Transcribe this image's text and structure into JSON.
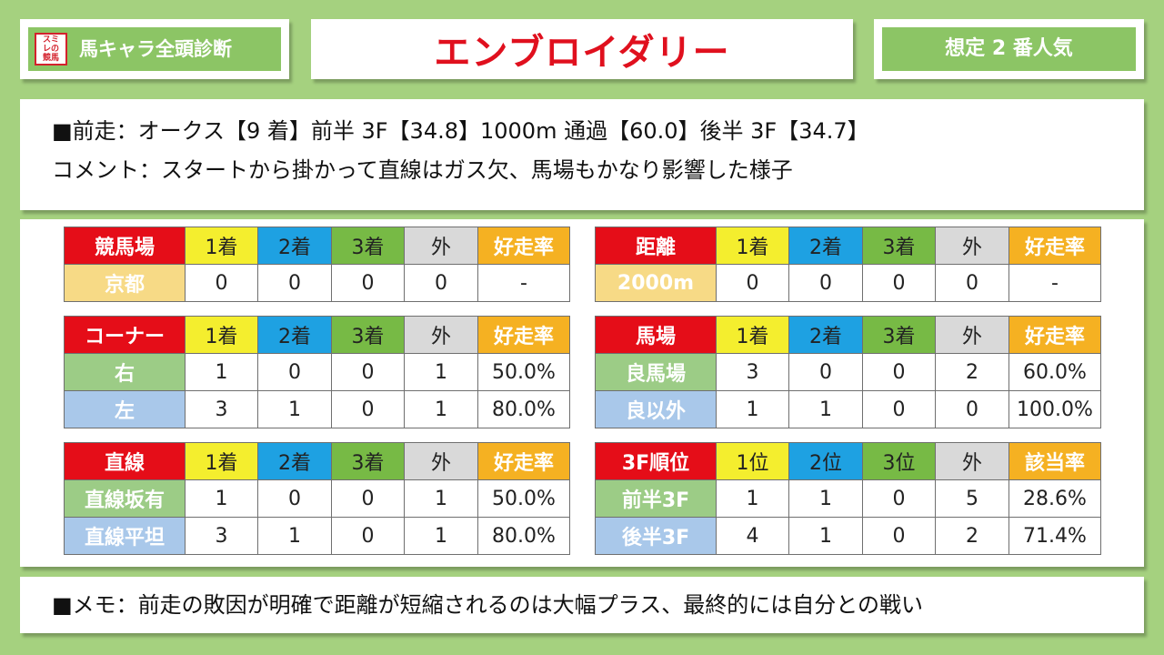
{
  "header": {
    "logo_lines": [
      "スミ",
      "レの",
      "競馬"
    ],
    "brand": "馬キャラ全頭診断",
    "horse_name": "エンブロイダリー",
    "popularity": "想定 2 番人気"
  },
  "info": {
    "last_race": "■前走：オークス【9 着】前半 3F【34.8】1000m 通過【60.0】後半 3F【34.7】",
    "comment": "コメント：スタートから掛かって直線はガス欠、馬場もかなり影響した様子"
  },
  "tables": {
    "racecourse": {
      "header": [
        "競馬場",
        "1着",
        "2着",
        "3着",
        "外",
        "好走率"
      ],
      "rows": [
        [
          "京都",
          "0",
          "0",
          "0",
          "0",
          "-"
        ]
      ]
    },
    "distance": {
      "header": [
        "距離",
        "1着",
        "2着",
        "3着",
        "外",
        "好走率"
      ],
      "rows": [
        [
          "2000m",
          "0",
          "0",
          "0",
          "0",
          "-"
        ]
      ]
    },
    "corner": {
      "header": [
        "コーナー",
        "1着",
        "2着",
        "3着",
        "外",
        "好走率"
      ],
      "rows": [
        [
          "右",
          "1",
          "0",
          "0",
          "1",
          "50.0%"
        ],
        [
          "左",
          "3",
          "1",
          "0",
          "1",
          "80.0%"
        ]
      ]
    },
    "going": {
      "header": [
        "馬場",
        "1着",
        "2着",
        "3着",
        "外",
        "好走率"
      ],
      "rows": [
        [
          "良馬場",
          "3",
          "0",
          "0",
          "2",
          "60.0%"
        ],
        [
          "良以外",
          "1",
          "1",
          "0",
          "0",
          "100.0%"
        ]
      ]
    },
    "straight": {
      "header": [
        "直線",
        "1着",
        "2着",
        "3着",
        "外",
        "好走率"
      ],
      "rows": [
        [
          "直線坂有",
          "1",
          "0",
          "0",
          "1",
          "50.0%"
        ],
        [
          "直線平坦",
          "3",
          "1",
          "0",
          "1",
          "80.0%"
        ]
      ]
    },
    "f3rank": {
      "header": [
        "3F順位",
        "1位",
        "2位",
        "3位",
        "外",
        "該当率"
      ],
      "rows": [
        [
          "前半3F",
          "1",
          "1",
          "0",
          "5",
          "28.6%"
        ],
        [
          "後半3F",
          "4",
          "1",
          "0",
          "2",
          "71.4%"
        ]
      ]
    }
  },
  "memo": "■メモ：前走の敗因が明確で距離が短縮されるのは大幅プラス、最終的には自分との戦い",
  "colors": {
    "background": "#a5d17f",
    "brand_green": "#8cc565",
    "title_red": "#e0101e",
    "header_red": "#e50d18",
    "yellow": "#f4ee2e",
    "blue": "#1ea1e2",
    "green": "#77ba45",
    "gray": "#d9d9d9",
    "orange": "#f5b122",
    "row_cream": "#f7da86",
    "row_green": "#9ccc86",
    "row_blue": "#a9c8ea"
  }
}
